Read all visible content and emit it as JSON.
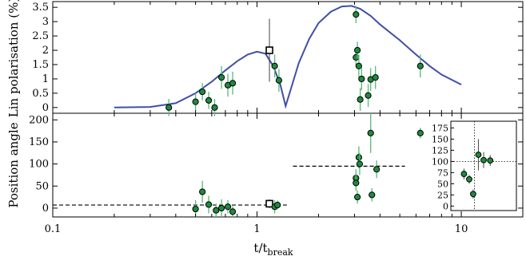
{
  "chart_data": {
    "type": "scatter",
    "title": "",
    "xlabel": {
      "main": "t/t",
      "sub": "break"
    },
    "xscale": "log",
    "xlim": [
      0.1,
      20
    ],
    "x_ticks": [
      0.1,
      1,
      10
    ],
    "x_tick_labels": [
      "0.1",
      "1",
      "10"
    ],
    "colors": {
      "data_fill": "#1e8a3e",
      "error_bar": "#5ab87a",
      "model_curve": "#3f4fa8",
      "reference_line": "#000000"
    },
    "panels": [
      {
        "id": "polarisation",
        "ylabel": "Lin polarisation (%)",
        "ylim": [
          -0.2,
          3.7
        ],
        "y_ticks": [
          0,
          0.5,
          1,
          1.5,
          2,
          2.5,
          3,
          3.5
        ],
        "y_tick_labels": [
          "0",
          "0.5",
          "1",
          "1.5",
          "2",
          "2.5",
          "3",
          "3.5"
        ],
        "model_curve": {
          "x": [
            0.2,
            0.3,
            0.4,
            0.5,
            0.6,
            0.7,
            0.8,
            0.9,
            1.0,
            1.1,
            1.2,
            1.3,
            1.38,
            1.45,
            1.6,
            1.8,
            2.0,
            2.3,
            2.6,
            2.9,
            3.2,
            3.6,
            4.0,
            5.0,
            6.0,
            7.0,
            8.0,
            10.0
          ],
          "y": [
            0.0,
            0.02,
            0.15,
            0.5,
            0.9,
            1.3,
            1.62,
            1.85,
            1.95,
            1.88,
            1.45,
            0.8,
            0.05,
            0.55,
            1.55,
            2.4,
            2.95,
            3.35,
            3.53,
            3.55,
            3.45,
            3.2,
            2.9,
            2.35,
            1.85,
            1.45,
            1.15,
            0.8
          ]
        },
        "points": [
          {
            "x": 0.37,
            "y": 0.0,
            "yerr": 0.3
          },
          {
            "x": 0.5,
            "y": 0.2,
            "yerr": 0.3
          },
          {
            "x": 0.54,
            "y": 0.55,
            "yerr": 0.3
          },
          {
            "x": 0.58,
            "y": 0.25,
            "yerr": 0.3
          },
          {
            "x": 0.62,
            "y": 0.0,
            "yerr": 0.3
          },
          {
            "x": 0.67,
            "y": 1.05,
            "yerr": 0.4
          },
          {
            "x": 0.72,
            "y": 0.78,
            "yerr": 0.4
          },
          {
            "x": 0.76,
            "y": 0.85,
            "yerr": 0.4
          },
          {
            "x": 1.22,
            "y": 1.45,
            "yerr": 0.4
          },
          {
            "x": 1.28,
            "y": 0.95,
            "yerr": 0.4
          },
          {
            "x": 3.05,
            "y": 3.25,
            "yerr": 0.3
          },
          {
            "x": 3.05,
            "y": 1.75,
            "yerr": 0.3
          },
          {
            "x": 3.1,
            "y": 2.0,
            "yerr": 0.3
          },
          {
            "x": 3.15,
            "y": 1.45,
            "yerr": 0.4
          },
          {
            "x": 3.2,
            "y": 0.28,
            "yerr": 0.4
          },
          {
            "x": 3.25,
            "y": 1.0,
            "yerr": 0.4
          },
          {
            "x": 3.5,
            "y": 0.42,
            "yerr": 0.4
          },
          {
            "x": 3.6,
            "y": 0.98,
            "yerr": 0.4
          },
          {
            "x": 3.8,
            "y": 1.05,
            "yerr": 0.4
          },
          {
            "x": 6.3,
            "y": 1.45,
            "yerr": 0.4
          }
        ],
        "open_points": [
          {
            "x": 1.15,
            "y": 2.0,
            "yerr": 1.1
          }
        ]
      },
      {
        "id": "position-angle",
        "ylabel": "Position angle",
        "ylim": [
          -20,
          215
        ],
        "y_ticks": [
          0,
          50,
          100,
          150,
          200
        ],
        "y_tick_labels": [
          "0",
          "50",
          "100",
          "150",
          "200"
        ],
        "reference_lines": [
          {
            "x": [
              0.1,
              1.4
            ],
            "y": 7
          },
          {
            "x": [
              1.5,
              5.3
            ],
            "y": 95
          }
        ],
        "points": [
          {
            "x": 0.5,
            "y": -2,
            "yerr": 20
          },
          {
            "x": 0.54,
            "y": 37,
            "yerr": 25
          },
          {
            "x": 0.58,
            "y": 8,
            "yerr": 20
          },
          {
            "x": 0.63,
            "y": -5,
            "yerr": 15
          },
          {
            "x": 0.67,
            "y": 0,
            "yerr": 20
          },
          {
            "x": 0.72,
            "y": 3,
            "yerr": 15
          },
          {
            "x": 0.76,
            "y": -8,
            "yerr": 12
          },
          {
            "x": 1.22,
            "y": 3,
            "yerr": 15
          },
          {
            "x": 1.26,
            "y": 7,
            "yerr": 10
          },
          {
            "x": 3.05,
            "y": 68,
            "yerr": 20
          },
          {
            "x": 3.05,
            "y": 57,
            "yerr": 18
          },
          {
            "x": 3.1,
            "y": 25,
            "yerr": 15
          },
          {
            "x": 3.15,
            "y": 115,
            "yerr": 25
          },
          {
            "x": 3.18,
            "y": 100,
            "yerr": 25
          },
          {
            "x": 3.6,
            "y": 170,
            "yerr": 45
          },
          {
            "x": 3.65,
            "y": 30,
            "yerr": 15
          },
          {
            "x": 3.85,
            "y": 88,
            "yerr": 20
          },
          {
            "x": 6.3,
            "y": 170,
            "yerr": 12
          }
        ],
        "open_points": [
          {
            "x": 1.15,
            "y": 10,
            "yerr": 10
          }
        ],
        "inset": {
          "ylim": [
            -10,
            190
          ],
          "y_ticks": [
            0,
            25,
            50,
            75,
            100,
            125,
            150,
            175
          ],
          "y_tick_labels": [
            "0",
            "25",
            "50",
            "75",
            "100",
            "125",
            "150",
            "175"
          ],
          "points": [
            {
              "x": 0.2,
              "y": 72,
              "yerr": 12
            },
            {
              "x": 0.28,
              "y": 60,
              "yerr": 10
            },
            {
              "x": 0.34,
              "y": 27,
              "yerr": 10
            },
            {
              "x": 0.42,
              "y": 115,
              "yerr": 35
            },
            {
              "x": 0.5,
              "y": 103,
              "yerr": 18
            },
            {
              "x": 0.6,
              "y": 102,
              "yerr": 12
            }
          ]
        }
      }
    ]
  }
}
